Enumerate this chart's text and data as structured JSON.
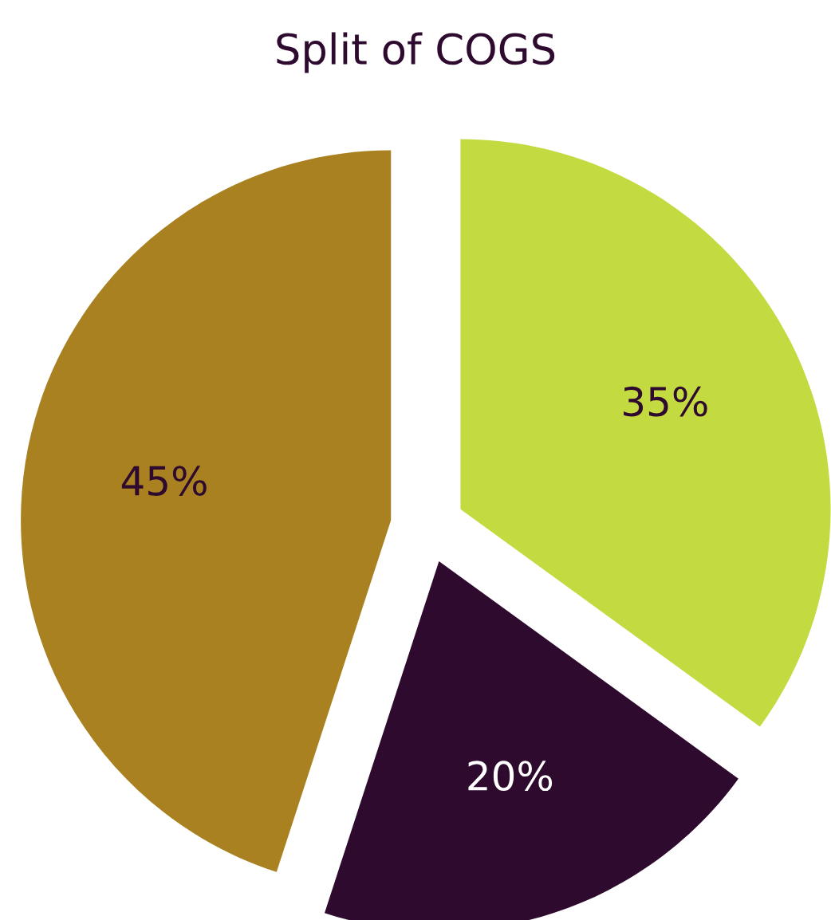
{
  "chart_data": {
    "type": "pie",
    "title": "Split of COGS",
    "categories": [
      null,
      null,
      null
    ],
    "values": [
      35,
      20,
      45
    ],
    "colors": [
      "#c3da40",
      "#2d0a2e",
      "#a98121"
    ],
    "value_labels": [
      "35%",
      "20%",
      "45%"
    ]
  }
}
